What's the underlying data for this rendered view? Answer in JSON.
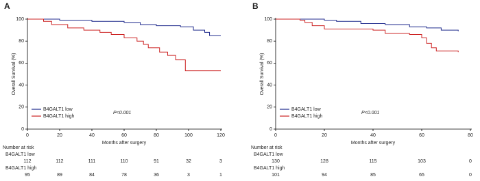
{
  "chart_data": [
    {
      "type": "km",
      "panel": "A",
      "ylabel": "Overall Survival (%)",
      "xlabel": "Months after surgery",
      "annotation": "P<0.001",
      "xlim": [
        0,
        120
      ],
      "xticks": [
        0,
        20,
        40,
        60,
        80,
        100,
        120
      ],
      "ylim": [
        0,
        100
      ],
      "yticks": [
        0,
        20,
        40,
        60,
        80,
        100
      ],
      "series": [
        {
          "name": "B4GALT1 low",
          "color": "#1f2a8c",
          "x": [
            0,
            20,
            40,
            60,
            70,
            80,
            95,
            103,
            110,
            113,
            120
          ],
          "values": [
            100,
            99,
            98,
            97,
            95,
            94,
            93,
            90,
            88,
            85,
            85
          ]
        },
        {
          "name": "B4GALT1 high",
          "color": "#cc2222",
          "x": [
            0,
            10,
            15,
            25,
            35,
            45,
            52,
            60,
            68,
            72,
            75,
            82,
            87,
            92,
            98,
            120
          ],
          "values": [
            100,
            98,
            95,
            92,
            90,
            88,
            86,
            83,
            80,
            77,
            74,
            70,
            67,
            63,
            53,
            53
          ]
        }
      ],
      "risk_table": {
        "title": "Number at risk",
        "rows": [
          {
            "name": "B4GALT1 low",
            "values": [
              112,
              112,
              111,
              110,
              91,
              32,
              3
            ]
          },
          {
            "name": "B4GALT1 high",
            "values": [
              95,
              89,
              84,
              78,
              36,
              3,
              1
            ]
          }
        ]
      }
    },
    {
      "type": "km",
      "panel": "B",
      "ylabel": "Overall Survival (%)",
      "xlabel": "Months after surgery",
      "annotation": "P<0.001",
      "xlim": [
        0,
        80
      ],
      "xticks": [
        0,
        20,
        40,
        60,
        80
      ],
      "ylim": [
        0,
        100
      ],
      "yticks": [
        0,
        20,
        40,
        60,
        80,
        100
      ],
      "series": [
        {
          "name": "B4GALT1 low",
          "color": "#1f2a8c",
          "x": [
            0,
            20,
            25,
            35,
            45,
            55,
            62,
            68,
            75
          ],
          "values": [
            100,
            99,
            98,
            96,
            95,
            93,
            92,
            90,
            89
          ]
        },
        {
          "name": "B4GALT1 high",
          "color": "#cc2222",
          "x": [
            0,
            10,
            12,
            15,
            20,
            40,
            45,
            55,
            60,
            62,
            64,
            66,
            75
          ],
          "values": [
            100,
            99,
            97,
            94,
            91,
            90,
            87,
            86,
            83,
            78,
            74,
            71,
            70
          ]
        }
      ],
      "risk_table": {
        "title": "Number at risk",
        "rows": [
          {
            "name": "B4GALT1 low",
            "values": [
              130,
              128,
              115,
              103,
              0
            ]
          },
          {
            "name": "B4GALT1 high",
            "values": [
              101,
              94,
              85,
              65,
              0
            ]
          }
        ]
      }
    }
  ]
}
